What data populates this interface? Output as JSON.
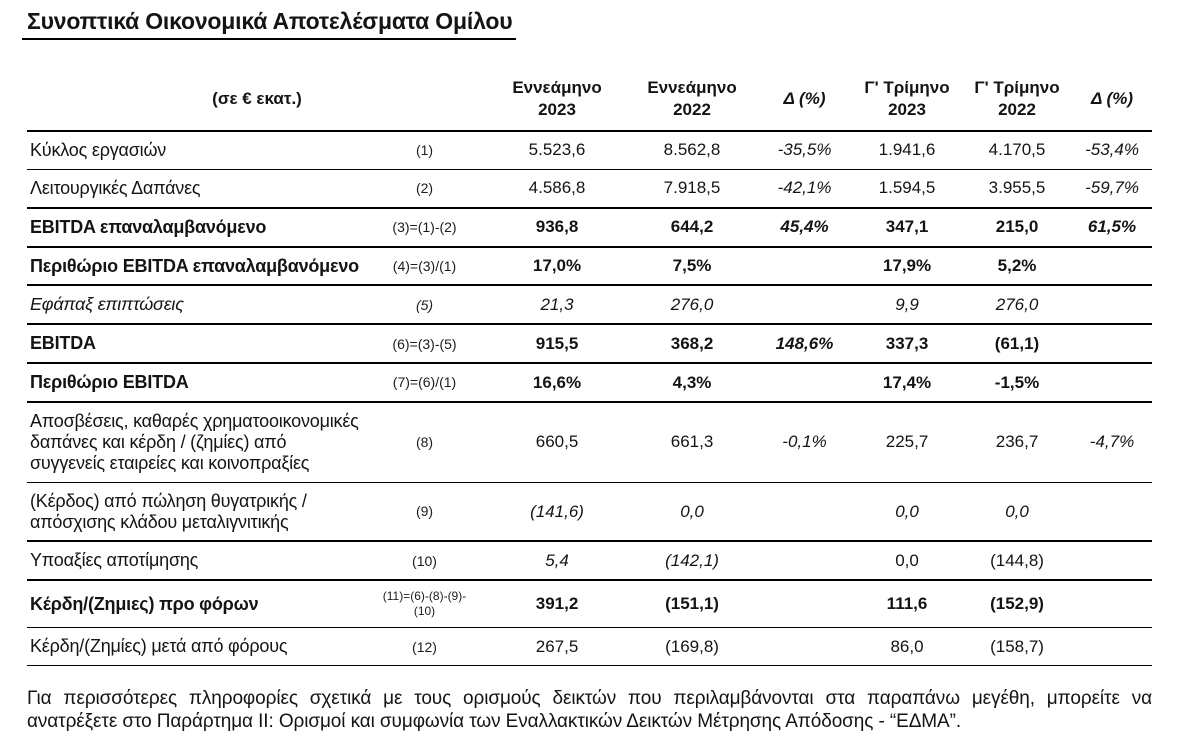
{
  "title": "Συνοπτικά Οικονομικά Αποτελέσματα Ομίλου",
  "colors": {
    "text": "#141414",
    "rule": "#000000",
    "background": "#ffffff"
  },
  "table": {
    "unit_label": "(σε € εκατ.)",
    "column_headers": [
      {
        "title": "Εννεάμηνο",
        "subtitle": "2023",
        "italic": false
      },
      {
        "title": "Εννεάμηνο",
        "subtitle": "2022",
        "italic": false
      },
      {
        "title": "Δ (%)",
        "subtitle": "",
        "italic": true
      },
      {
        "title": "Γ' Τρίμηνο",
        "subtitle": "2023",
        "italic": false
      },
      {
        "title": "Γ' Τρίμηνο",
        "subtitle": "2022",
        "italic": false
      },
      {
        "title": "Δ (%)",
        "subtitle": "",
        "italic": true
      }
    ],
    "rows": [
      {
        "label": "Κύκλος εργασιών",
        "ref": "(1)",
        "values": [
          "5.523,6",
          "8.562,8",
          "-35,5%",
          "1.941,6",
          "4.170,5",
          "-53,4%"
        ],
        "emphasis": "normal",
        "border_bottom": "thin",
        "italic_value_cols": []
      },
      {
        "label": "Λειτουργικές Δαπάνες",
        "ref": "(2)",
        "values": [
          "4.586,8",
          "7.918,5",
          "-42,1%",
          "1.594,5",
          "3.955,5",
          "-59,7%"
        ],
        "emphasis": "normal",
        "border_bottom": "thick",
        "italic_value_cols": []
      },
      {
        "label": "EBITDA επαναλαμβανόμενο",
        "ref": "(3)=(1)-(2)",
        "values": [
          "936,8",
          "644,2",
          "45,4%",
          "347,1",
          "215,0",
          "61,5%"
        ],
        "emphasis": "bold",
        "border_bottom": "thick",
        "italic_value_cols": []
      },
      {
        "label": "Περιθώριο EBITDA επαναλαμβανόμενο",
        "ref": "(4)=(3)/(1)",
        "values": [
          "17,0%",
          "7,5%",
          "",
          "17,9%",
          "5,2%",
          ""
        ],
        "emphasis": "bold",
        "border_bottom": "thick",
        "italic_value_cols": []
      },
      {
        "label": "Εφάπαξ επιπτώσεις",
        "ref": "(5)",
        "values": [
          "21,3",
          "276,0",
          "",
          "9,9",
          "276,0",
          ""
        ],
        "emphasis": "italic",
        "border_bottom": "thick",
        "italic_value_cols": []
      },
      {
        "label": "EBITDA",
        "ref": "(6)=(3)-(5)",
        "values": [
          "915,5",
          "368,2",
          "148,6%",
          "337,3",
          "(61,1)",
          ""
        ],
        "emphasis": "bold",
        "border_bottom": "thick",
        "italic_value_cols": []
      },
      {
        "label": "Περιθώριο EBITDA",
        "ref": "(7)=(6)/(1)",
        "values": [
          "16,6%",
          "4,3%",
          "",
          "17,4%",
          "-1,5%",
          ""
        ],
        "emphasis": "bold",
        "border_bottom": "thick",
        "italic_value_cols": []
      },
      {
        "label": "Αποσβέσεις, καθαρές χρηματοοικονομικές δαπάνες και κέρδη / (ζημίες) από συγγενείς εταιρείες και κοινοπραξίες",
        "ref": "(8)",
        "values": [
          "660,5",
          "661,3",
          "-0,1%",
          "225,7",
          "236,7",
          "-4,7%"
        ],
        "emphasis": "normal",
        "border_bottom": "thin",
        "italic_value_cols": []
      },
      {
        "label": "(Κέρδος) από πώληση θυγατρικής / απόσχισης κλάδου μεταλιγνιτικής",
        "ref": "(9)",
        "values": [
          "(141,6)",
          "0,0",
          "",
          "0,0",
          "0,0",
          ""
        ],
        "emphasis": "normal",
        "border_bottom": "thick",
        "italic_value_cols": [
          0,
          1,
          3,
          4
        ]
      },
      {
        "label": "Υποαξίες αποτίμησης",
        "ref": "(10)",
        "values": [
          "5,4",
          "(142,1)",
          "",
          "0,0",
          "(144,8)",
          ""
        ],
        "emphasis": "normal",
        "border_bottom": "thick",
        "italic_value_cols": [
          0,
          1
        ]
      },
      {
        "label": "Κέρδη/(Ζημιες) προ φόρων",
        "ref": "(11)=(6)-(8)-(9)-(10)",
        "ref_small": true,
        "values": [
          "391,2",
          "(151,1)",
          "",
          "111,6",
          "(152,9)",
          ""
        ],
        "emphasis": "bold",
        "border_bottom": "thin",
        "italic_value_cols": []
      },
      {
        "label": "Κέρδη/(Ζημίες) μετά από φόρους",
        "ref": "(12)",
        "values": [
          "267,5",
          "(169,8)",
          "",
          "86,0",
          "(158,7)",
          ""
        ],
        "emphasis": "normal",
        "border_bottom": "thin",
        "italic_value_cols": []
      }
    ]
  },
  "footnote": "Για περισσότερες πληροφορίες σχετικά με τους ορισμούς δεικτών που περιλαμβάνονται στα παραπάνω μεγέθη, μπορείτε να ανατρέξετε στο Παράρτημα II: Ορισμοί και συμφωνία των Εναλλακτικών Δεικτών Μέτρησης Απόδοσης - “ΕΔΜΑ”."
}
